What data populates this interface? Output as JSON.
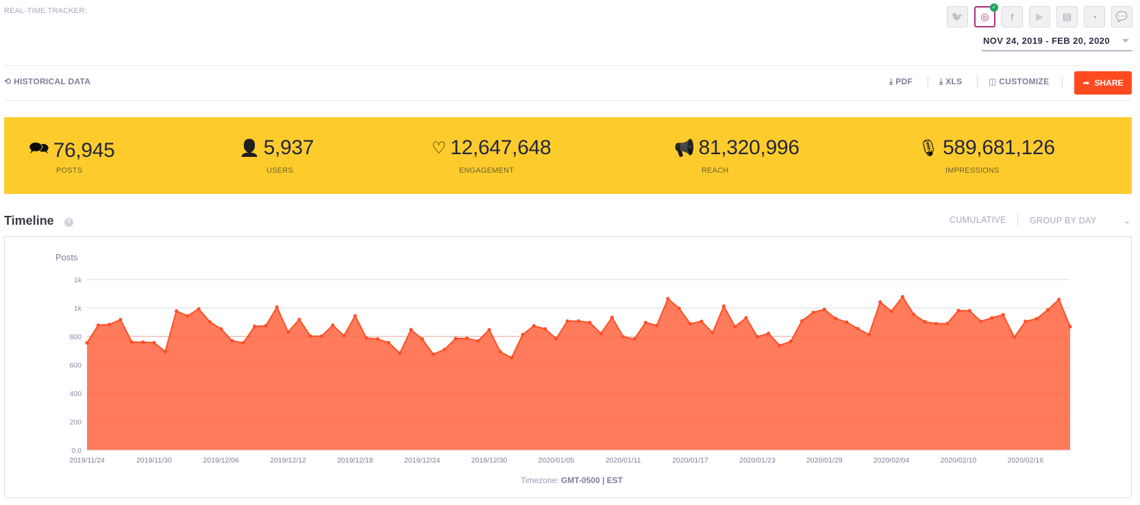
{
  "header": {
    "tracker_label": "REAL-TIME TRACKER:",
    "networks": [
      {
        "name": "twitter",
        "icon": "twitter-icon",
        "glyph": "🐦",
        "active": false
      },
      {
        "name": "instagram",
        "icon": "instagram-icon",
        "glyph": "◎",
        "active": true
      },
      {
        "name": "facebook",
        "icon": "facebook-icon",
        "glyph": "f",
        "active": false
      },
      {
        "name": "youtube",
        "icon": "youtube-icon",
        "glyph": "▶",
        "active": false
      },
      {
        "name": "news",
        "icon": "news-icon",
        "glyph": "▤",
        "active": false
      },
      {
        "name": "rss",
        "icon": "rss-icon",
        "glyph": "◔",
        "active": false
      },
      {
        "name": "forums",
        "icon": "chat-bubbles-icon",
        "glyph": "💬",
        "active": false
      }
    ],
    "date_range": "NOV 24, 2019 - FEB 20, 2020"
  },
  "toolbar": {
    "historical": "HISTORICAL DATA",
    "pdf": "PDF",
    "xls": "XLS",
    "customize": "CUSTOMIZE",
    "share": "SHARE"
  },
  "kpis": [
    {
      "value": "76,945",
      "label": "POSTS",
      "icon": "chat-bubbles-icon"
    },
    {
      "value": "5,937",
      "label": "USERS",
      "icon": "user-icon"
    },
    {
      "value": "12,647,648",
      "label": "ENGAGEMENT",
      "icon": "heart-icon"
    },
    {
      "value": "81,320,996",
      "label": "REACH",
      "icon": "megaphone-icon"
    },
    {
      "value": "589,681,126",
      "label": "IMPRESSIONS",
      "icon": "microphone-icon"
    }
  ],
  "timeline": {
    "title": "Timeline",
    "cumulative": "CUMULATIVE",
    "group_by": "GROUP BY DAY",
    "timezone_label": "Timezone:",
    "timezone_value": "GMT-0500 | EST"
  },
  "colors": {
    "accent": "#ff4a20",
    "band": "#fdcc2c",
    "area_fill": "#ff7b5c",
    "line": "#ff4f26",
    "instagram": "#b02a7a"
  },
  "chart_data": {
    "type": "area",
    "ylabel": "Posts",
    "ylim": [
      0,
      1200
    ],
    "yticks": [
      0,
      200,
      400,
      600,
      800,
      1000,
      1200
    ],
    "ytick_labels": [
      "0.0",
      "200",
      "400",
      "600",
      "800",
      "1k",
      "1k"
    ],
    "x_start": "2019/11/24",
    "x_end": "2020/02/20",
    "xtick_labels": [
      "2019/11/24",
      "2019/11/30",
      "2019/12/06",
      "2019/12/12",
      "2019/12/18",
      "2019/12/24",
      "2019/12/30",
      "2020/01/05",
      "2020/01/11",
      "2020/01/17",
      "2020/01/23",
      "2020/01/29",
      "2020/02/04",
      "2020/02/10",
      "2020/02/16"
    ],
    "grid": true,
    "values": [
      755,
      879,
      884,
      918,
      761,
      760,
      756,
      694,
      979,
      945,
      994,
      902,
      853,
      769,
      755,
      871,
      874,
      1006,
      831,
      919,
      802,
      802,
      879,
      805,
      945,
      790,
      782,
      756,
      682,
      848,
      782,
      674,
      708,
      785,
      787,
      769,
      847,
      692,
      650,
      813,
      874,
      853,
      785,
      908,
      908,
      898,
      821,
      934,
      797,
      782,
      898,
      877,
      1065,
      998,
      889,
      906,
      827,
      1013,
      869,
      931,
      798,
      821,
      737,
      765,
      910,
      969,
      990,
      927,
      900,
      855,
      813,
      1042,
      977,
      1079,
      955,
      903,
      890,
      890,
      982,
      981,
      906,
      931,
      953,
      795,
      906,
      924,
      987,
      1060,
      869
    ]
  }
}
